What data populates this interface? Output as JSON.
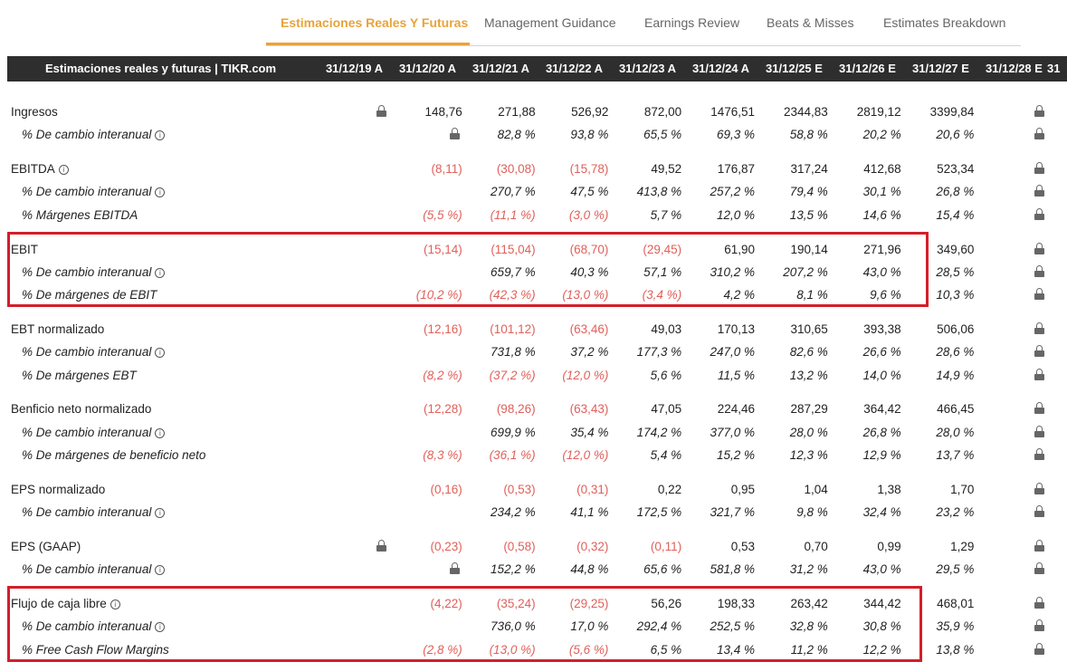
{
  "tabs": [
    {
      "label": "Estimaciones Reales Y Futuras",
      "active": true
    },
    {
      "label": "Management Guidance"
    },
    {
      "label": "Earnings Review"
    },
    {
      "label": "Beats & Misses"
    },
    {
      "label": "Estimates Breakdown"
    }
  ],
  "colors": {
    "accent": "#e8a33a",
    "negative": "#e0605a",
    "highlight_box": "#d21f2b",
    "header_bg": "#2e2e2e"
  },
  "table": {
    "title": "Estimaciones reales y futuras | TIKR.com",
    "columns": [
      "31/12/19 A",
      "31/12/20 A",
      "31/12/21 A",
      "31/12/22 A",
      "31/12/23 A",
      "31/12/24 A",
      "31/12/25 E",
      "31/12/26 E",
      "31/12/27 E",
      "31/12/28 E",
      "31"
    ],
    "groups": [
      {
        "highlighted": false,
        "rows": [
          {
            "label": "Ingresos",
            "sub": false,
            "info": false,
            "cells": [
              "lock",
              "148,76",
              "271,88",
              "526,92",
              "872,00",
              "1476,51",
              "2344,83",
              "2819,12",
              "3399,84",
              "lock"
            ]
          },
          {
            "label": "% De cambio interanual",
            "sub": true,
            "info": true,
            "cells": [
              "",
              "lock",
              "82,8 %",
              "93,8 %",
              "65,5 %",
              "69,3 %",
              "58,8 %",
              "20,2 %",
              "20,6 %",
              "lock"
            ]
          }
        ]
      },
      {
        "highlighted": false,
        "rows": [
          {
            "label": "EBITDA",
            "sub": false,
            "info": true,
            "cells": [
              "",
              "(8,11)",
              "(30,08)",
              "(15,78)",
              "49,52",
              "176,87",
              "317,24",
              "412,68",
              "523,34",
              "lock"
            ]
          },
          {
            "label": "% De cambio interanual",
            "sub": true,
            "info": true,
            "cells": [
              "",
              "",
              "270,7 %",
              "47,5 %",
              "413,8 %",
              "257,2 %",
              "79,4 %",
              "30,1 %",
              "26,8 %",
              "lock"
            ]
          },
          {
            "label": "% Márgenes EBITDA",
            "sub": true,
            "info": false,
            "cells": [
              "",
              "(5,5 %)",
              "(11,1 %)",
              "(3,0 %)",
              "5,7 %",
              "12,0 %",
              "13,5 %",
              "14,6 %",
              "15,4 %",
              "lock"
            ]
          }
        ]
      },
      {
        "highlighted": true,
        "rows": [
          {
            "label": "EBIT",
            "sub": false,
            "info": false,
            "cells": [
              "",
              "(15,14)",
              "(115,04)",
              "(68,70)",
              "(29,45)",
              "61,90",
              "190,14",
              "271,96",
              "349,60",
              "lock"
            ]
          },
          {
            "label": "% De cambio interanual",
            "sub": true,
            "info": true,
            "cells": [
              "",
              "",
              "659,7 %",
              "40,3 %",
              "57,1 %",
              "310,2 %",
              "207,2 %",
              "43,0 %",
              "28,5 %",
              "lock"
            ]
          },
          {
            "label": "% De márgenes de EBIT",
            "sub": true,
            "info": false,
            "cells": [
              "",
              "(10,2 %)",
              "(42,3 %)",
              "(13,0 %)",
              "(3,4 %)",
              "4,2 %",
              "8,1 %",
              "9,6 %",
              "10,3 %",
              "lock"
            ]
          }
        ]
      },
      {
        "highlighted": false,
        "rows": [
          {
            "label": "EBT normalizado",
            "sub": false,
            "info": false,
            "cells": [
              "",
              "(12,16)",
              "(101,12)",
              "(63,46)",
              "49,03",
              "170,13",
              "310,65",
              "393,38",
              "506,06",
              "lock"
            ]
          },
          {
            "label": "% De cambio interanual",
            "sub": true,
            "info": true,
            "cells": [
              "",
              "",
              "731,8 %",
              "37,2 %",
              "177,3 %",
              "247,0 %",
              "82,6 %",
              "26,6 %",
              "28,6 %",
              "lock"
            ]
          },
          {
            "label": "% De márgenes EBT",
            "sub": true,
            "info": false,
            "cells": [
              "",
              "(8,2 %)",
              "(37,2 %)",
              "(12,0 %)",
              "5,6 %",
              "11,5 %",
              "13,2 %",
              "14,0 %",
              "14,9 %",
              "lock"
            ]
          }
        ]
      },
      {
        "highlighted": false,
        "rows": [
          {
            "label": "Benficio neto normalizado",
            "sub": false,
            "info": false,
            "cells": [
              "",
              "(12,28)",
              "(98,26)",
              "(63,43)",
              "47,05",
              "224,46",
              "287,29",
              "364,42",
              "466,45",
              "lock"
            ]
          },
          {
            "label": "% De cambio interanual",
            "sub": true,
            "info": true,
            "cells": [
              "",
              "",
              "699,9 %",
              "35,4 %",
              "174,2 %",
              "377,0 %",
              "28,0 %",
              "26,8 %",
              "28,0 %",
              "lock"
            ]
          },
          {
            "label": "% De márgenes de beneficio neto",
            "sub": true,
            "info": false,
            "cells": [
              "",
              "(8,3 %)",
              "(36,1 %)",
              "(12,0 %)",
              "5,4 %",
              "15,2 %",
              "12,3 %",
              "12,9 %",
              "13,7 %",
              "lock"
            ]
          }
        ]
      },
      {
        "highlighted": false,
        "rows": [
          {
            "label": "EPS normalizado",
            "sub": false,
            "info": false,
            "cells": [
              "",
              "(0,16)",
              "(0,53)",
              "(0,31)",
              "0,22",
              "0,95",
              "1,04",
              "1,38",
              "1,70",
              "lock"
            ]
          },
          {
            "label": "% De cambio interanual",
            "sub": true,
            "info": true,
            "cells": [
              "",
              "",
              "234,2 %",
              "41,1 %",
              "172,5 %",
              "321,7 %",
              "9,8 %",
              "32,4 %",
              "23,2 %",
              "lock"
            ]
          }
        ]
      },
      {
        "highlighted": false,
        "rows": [
          {
            "label": "EPS (GAAP)",
            "sub": false,
            "info": false,
            "cells": [
              "lock",
              "(0,23)",
              "(0,58)",
              "(0,32)",
              "(0,11)",
              "0,53",
              "0,70",
              "0,99",
              "1,29",
              "lock"
            ]
          },
          {
            "label": "% De cambio interanual",
            "sub": true,
            "info": true,
            "cells": [
              "",
              "lock",
              "152,2 %",
              "44,8 %",
              "65,6 %",
              "581,8 %",
              "31,2 %",
              "43,0 %",
              "29,5 %",
              "lock"
            ]
          }
        ]
      },
      {
        "highlighted": true,
        "rows": [
          {
            "label": "Flujo de caja libre",
            "sub": false,
            "info": true,
            "cells": [
              "",
              "(4,22)",
              "(35,24)",
              "(29,25)",
              "56,26",
              "198,33",
              "263,42",
              "344,42",
              "468,01",
              "lock"
            ]
          },
          {
            "label": "% De cambio interanual",
            "sub": true,
            "info": true,
            "cells": [
              "",
              "",
              "736,0 %",
              "17,0 %",
              "292,4 %",
              "252,5 %",
              "32,8 %",
              "30,8 %",
              "35,9 %",
              "lock"
            ]
          },
          {
            "label": "% Free Cash Flow Margins",
            "sub": true,
            "info": false,
            "cells": [
              "",
              "(2,8 %)",
              "(13,0 %)",
              "(5,6 %)",
              "6,5 %",
              "13,4 %",
              "11,2 %",
              "12,2 %",
              "13,8 %",
              "lock"
            ]
          }
        ]
      }
    ]
  }
}
